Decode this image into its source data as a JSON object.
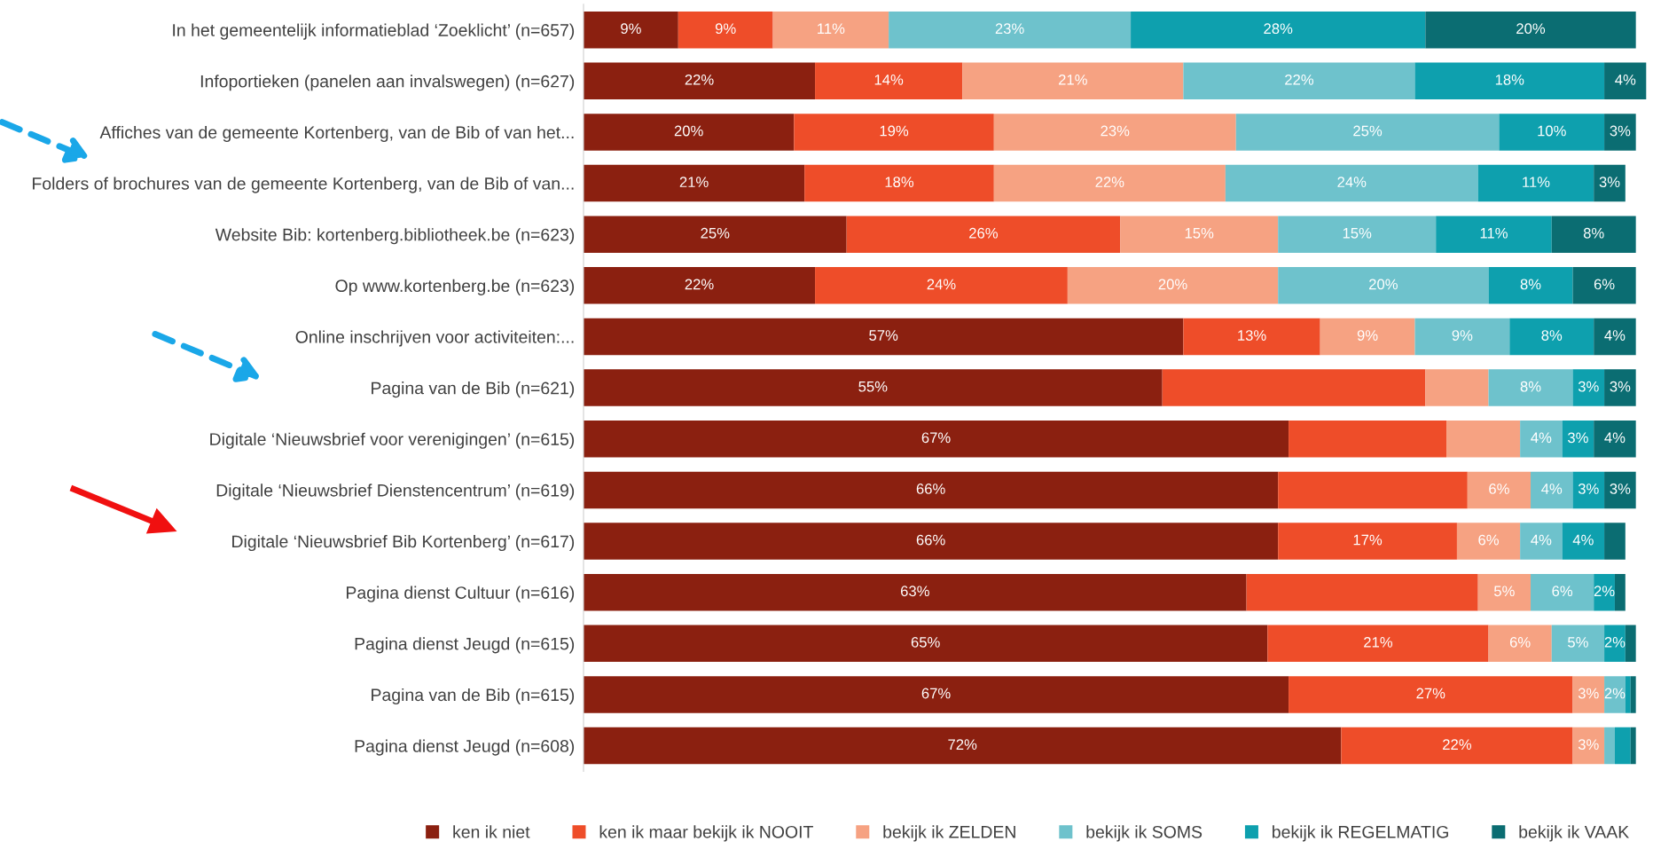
{
  "chart_data": {
    "type": "bar",
    "orientation": "horizontal",
    "stacked": true,
    "categories": [
      "In het gemeentelijk informatieblad ‘Zoeklicht’ (n=657)",
      "Infoportieken (panelen aan invalswegen) (n=627)",
      "Affiches van de gemeente Kortenberg, van de Bib of van het...",
      "Folders of brochures van de gemeente Kortenberg, van de Bib of van...",
      "Website Bib: kortenberg.bibliotheek.be (n=623)",
      "Op www.kortenberg.be (n=623)",
      "Online inschrijven voor activiteiten:...",
      "Pagina van de Bib (n=621)",
      "Digitale ‘Nieuwsbrief voor verenigingen’ (n=615)",
      "Digitale ‘Nieuwsbrief Dienstencentrum’ (n=619)",
      "Digitale ‘Nieuwsbrief Bib Kortenberg’ (n=617)",
      "Pagina dienst Cultuur (n=616)",
      "Pagina dienst Jeugd (n=615)",
      "Pagina van de Bib (n=615)",
      "Pagina dienst Jeugd (n=608)"
    ],
    "xlim": [
      0,
      101
    ],
    "tick_labels": "y",
    "grid": false,
    "legend": "bottom",
    "series": [
      {
        "name": "ken ik niet",
        "color": "#8b2010",
        "values": [
          9,
          22,
          20,
          21,
          25,
          22,
          57,
          55,
          67,
          66,
          66,
          63,
          65,
          67,
          72
        ],
        "value_labels": [
          "9%",
          "22%",
          "20%",
          "21%",
          "25%",
          "22%",
          "57%",
          "55%",
          "67%",
          "66%",
          "66%",
          "63%",
          "65%",
          "67%",
          "72%"
        ]
      },
      {
        "name": "ken ik maar bekijk ik NOOIT",
        "color": "#ee4d29",
        "values": [
          9,
          14,
          19,
          18,
          26,
          24,
          13,
          25,
          15,
          18,
          17,
          22,
          21,
          27,
          22
        ],
        "value_labels": [
          "9%",
          "14%",
          "19%",
          "18%",
          "26%",
          "24%",
          "13%",
          null,
          null,
          null,
          "17%",
          null,
          "21%",
          "27%",
          "22%"
        ]
      },
      {
        "name": "bekijk ik ZELDEN",
        "color": "#f6a282",
        "values": [
          11,
          21,
          23,
          22,
          15,
          20,
          9,
          6,
          7,
          6,
          6,
          5,
          6,
          3,
          3
        ],
        "value_labels": [
          "11%",
          "21%",
          "23%",
          "22%",
          "15%",
          "20%",
          "9%",
          null,
          null,
          "6%",
          "6%",
          "5%",
          "6%",
          "3%",
          "3%"
        ]
      },
      {
        "name": "bekijk ik SOMS",
        "color": "#6ec2cc",
        "values": [
          23,
          22,
          25,
          24,
          15,
          20,
          9,
          8,
          4,
          4,
          4,
          6,
          5,
          2,
          1
        ],
        "value_labels": [
          "23%",
          "22%",
          "25%",
          "24%",
          "15%",
          "20%",
          "9%",
          "8%",
          "4%",
          "4%",
          "4%",
          "6%",
          "5%",
          "2%",
          null
        ]
      },
      {
        "name": "bekijk ik REGELMATIG",
        "color": "#0ea0ae",
        "values": [
          28,
          18,
          10,
          11,
          11,
          8,
          8,
          3,
          3,
          3,
          4,
          2,
          2,
          0.5,
          1.5
        ],
        "value_labels": [
          "28%",
          "18%",
          "10%",
          "11%",
          "11%",
          "8%",
          "8%",
          "3%",
          "3%",
          "3%",
          "4%",
          "2%",
          "2%",
          null,
          null
        ]
      },
      {
        "name": "bekijk ik VAAK",
        "color": "#0b6d72",
        "values": [
          20,
          4,
          3,
          3,
          8,
          6,
          4,
          3,
          4,
          3,
          2,
          1,
          1,
          0.5,
          0.5
        ],
        "value_labels": [
          "20%",
          "4%",
          "3%",
          "3%",
          "8%",
          "6%",
          "4%",
          "3%",
          "4%",
          "3%",
          null,
          null,
          null,
          null,
          null
        ]
      }
    ]
  }
}
